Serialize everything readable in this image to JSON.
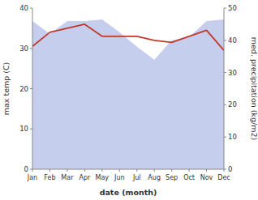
{
  "chart_data": {
    "type": "line",
    "categories": [
      "Jan",
      "Feb",
      "Mar",
      "Apr",
      "May",
      "Jun",
      "Jul",
      "Aug",
      "Sep",
      "Oct",
      "Nov",
      "Dec"
    ],
    "series": [
      {
        "type": "area",
        "axis": "y2",
        "color": "#b3bde8",
        "values": [
          46,
          42,
          46,
          46,
          46.5,
          42.5,
          38,
          34,
          40,
          41,
          46,
          46.5
        ]
      },
      {
        "type": "line",
        "color": "#c0392b",
        "values": [
          30.5,
          34,
          35,
          36,
          33,
          33,
          33,
          32,
          31.5,
          33,
          34.5,
          29.5
        ]
      }
    ],
    "x_label": "date (month)",
    "y_label": "max temp (C)",
    "y2_label": "med. precipitation (kg/m2)",
    "ylim": [
      0,
      40
    ],
    "yticks": [
      0,
      10,
      20,
      30,
      40
    ],
    "y2lim": [
      0,
      50
    ],
    "y2ticks": [
      0,
      10,
      20,
      30,
      40,
      50
    ],
    "grid": false
  }
}
